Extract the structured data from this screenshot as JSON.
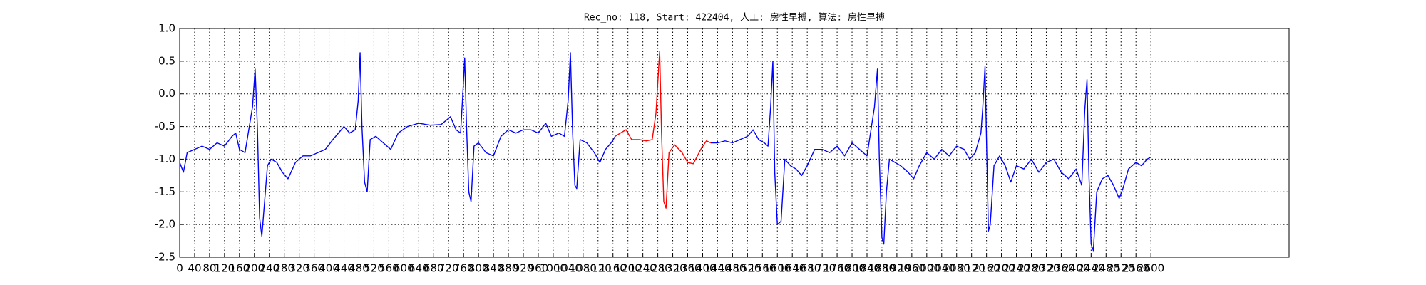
{
  "chart_data": {
    "type": "line",
    "title": "Rec_no: 118, Start: 422404, 人工: 房性早搏, 算法: 房性早搏",
    "xlim": [
      0,
      2970
    ],
    "ylim": [
      -2.5,
      1.0
    ],
    "xticks": [
      0,
      40,
      80,
      120,
      160,
      200,
      240,
      280,
      320,
      360,
      400,
      440,
      480,
      520,
      560,
      600,
      640,
      680,
      720,
      760,
      800,
      840,
      880,
      920,
      960,
      1000,
      1040,
      1080,
      1120,
      1160,
      1200,
      1240,
      1280,
      1320,
      1360,
      1400,
      1440,
      1480,
      1520,
      1560,
      1600,
      1640,
      1680,
      1720,
      1760,
      1800,
      1840,
      1880,
      1920,
      1960,
      2000,
      2040,
      2080,
      2120,
      2160,
      2200,
      2240,
      2280,
      2320,
      2360,
      2400,
      2440,
      2480,
      2520,
      2560,
      2600
    ],
    "yticks": [
      {
        "value": 1.0,
        "label": "1.0"
      },
      0.5,
      {
        "value": 0.0,
        "label": "0.0"
      },
      -0.5,
      {
        "value": -1.0,
        "label": "-1.0"
      },
      -1.5,
      {
        "value": -2.0,
        "label": "-2.0"
      },
      -2.5
    ],
    "grid": true,
    "series": [
      {
        "color": "#0000ff",
        "x": [
          0,
          10,
          20,
          40,
          60,
          80,
          100,
          120,
          140,
          150,
          160,
          175,
          185,
          195,
          202,
          208,
          214,
          220,
          228,
          235,
          245,
          260,
          275,
          290,
          310,
          330,
          350,
          370,
          390,
          410,
          425,
          440,
          455,
          470,
          478,
          483,
          488,
          495,
          502,
          510,
          525,
          545,
          565,
          585,
          610,
          640,
          670,
          700,
          725,
          740,
          752,
          758,
          763,
          768,
          774,
          780,
          788,
          800,
          820,
          840,
          860,
          880,
          900,
          920,
          940,
          960,
          980,
          995,
          1015,
          1030,
          1040,
          1046,
          1052,
          1058,
          1063,
          1072,
          1090,
          1110,
          1125,
          1140,
          1155,
          1166
        ],
        "values": [
          -1.05,
          -1.2,
          -0.9,
          -0.85,
          -0.8,
          -0.85,
          -0.75,
          -0.8,
          -0.65,
          -0.6,
          -0.85,
          -0.9,
          -0.55,
          -0.2,
          0.38,
          -0.5,
          -1.9,
          -2.18,
          -1.6,
          -1.1,
          -1.0,
          -1.05,
          -1.2,
          -1.3,
          -1.05,
          -0.95,
          -0.95,
          -0.9,
          -0.85,
          -0.7,
          -0.6,
          -0.5,
          -0.6,
          -0.55,
          -0.1,
          0.63,
          -0.5,
          -1.35,
          -1.5,
          -0.7,
          -0.65,
          -0.75,
          -0.85,
          -0.6,
          -0.5,
          -0.45,
          -0.48,
          -0.47,
          -0.35,
          -0.55,
          -0.6,
          0.0,
          0.55,
          -0.5,
          -1.5,
          -1.65,
          -0.8,
          -0.75,
          -0.9,
          -0.95,
          -0.65,
          -0.55,
          -0.6,
          -0.55,
          -0.55,
          -0.6,
          -0.45,
          -0.65,
          -0.6,
          -0.65,
          -0.1,
          0.63,
          -0.6,
          -1.4,
          -1.45,
          -0.7,
          -0.75,
          -0.9,
          -1.05,
          -0.85,
          -0.75,
          -0.65
        ]
      },
      {
        "color": "#ff0000",
        "x": [
          1166,
          1180,
          1195,
          1210,
          1230,
          1250,
          1265,
          1275,
          1285,
          1290,
          1296,
          1302,
          1310,
          1325,
          1345,
          1360,
          1375,
          1395,
          1410,
          1422
        ],
        "values": [
          -0.65,
          -0.6,
          -0.55,
          -0.7,
          -0.7,
          -0.72,
          -0.7,
          -0.3,
          0.65,
          -0.6,
          -1.65,
          -1.75,
          -0.9,
          -0.78,
          -0.9,
          -1.05,
          -1.07,
          -0.85,
          -0.72,
          -0.75
        ]
      },
      {
        "color": "#0000ff",
        "x": [
          1422,
          1440,
          1460,
          1480,
          1500,
          1520,
          1535,
          1550,
          1565,
          1575,
          1582,
          1588,
          1593,
          1600,
          1610,
          1620,
          1635,
          1650,
          1665,
          1680,
          1700,
          1720,
          1740,
          1760,
          1780,
          1800,
          1820,
          1840,
          1852,
          1860,
          1868,
          1873,
          1880,
          1885,
          1892,
          1900,
          1915,
          1930,
          1950,
          1965,
          1980,
          2000,
          2020,
          2040,
          2060,
          2080,
          2100,
          2115,
          2130,
          2145,
          2150,
          2156,
          2161,
          2165,
          2170,
          2180,
          2195,
          2210,
          2225,
          2240,
          2260,
          2280,
          2300,
          2320,
          2340,
          2360,
          2380,
          2400,
          2415,
          2423,
          2429,
          2434,
          2440,
          2446,
          2455,
          2470,
          2485,
          2500,
          2515,
          2525,
          2540,
          2560,
          2575,
          2590,
          2600
        ],
        "values": [
          -0.75,
          -0.75,
          -0.72,
          -0.75,
          -0.7,
          -0.65,
          -0.55,
          -0.7,
          -0.75,
          -0.8,
          -0.2,
          0.5,
          -1.2,
          -2.0,
          -1.95,
          -1.0,
          -1.1,
          -1.15,
          -1.25,
          -1.1,
          -0.85,
          -0.85,
          -0.9,
          -0.8,
          -0.95,
          -0.75,
          -0.85,
          -0.95,
          -0.5,
          -0.2,
          0.38,
          -1.0,
          -2.2,
          -2.3,
          -1.5,
          -1.0,
          -1.05,
          -1.1,
          -1.2,
          -1.3,
          -1.1,
          -0.9,
          -1.0,
          -0.85,
          -0.95,
          -0.8,
          -0.85,
          -1.0,
          -0.9,
          -0.6,
          -0.2,
          0.42,
          -1.0,
          -2.1,
          -2.0,
          -1.1,
          -0.95,
          -1.1,
          -1.35,
          -1.1,
          -1.15,
          -1.0,
          -1.2,
          -1.05,
          -1.0,
          -1.2,
          -1.3,
          -1.15,
          -1.4,
          -0.25,
          0.22,
          -1.2,
          -2.3,
          -2.4,
          -1.5,
          -1.3,
          -1.25,
          -1.4,
          -1.6,
          -1.45,
          -1.15,
          -1.05,
          -1.1,
          -1.0,
          -0.97
        ]
      }
    ]
  }
}
